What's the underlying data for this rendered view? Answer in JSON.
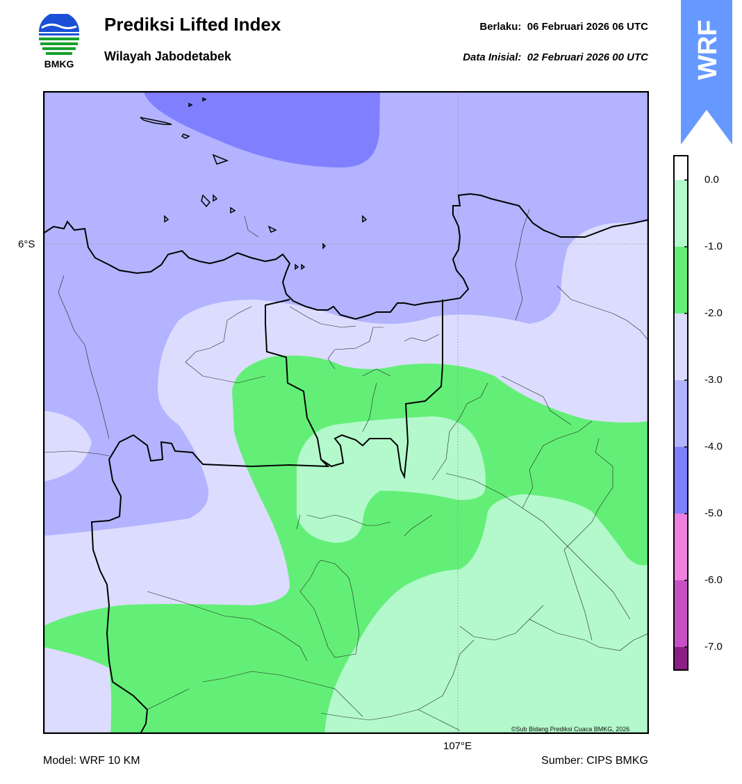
{
  "header": {
    "title": "Prediksi Lifted Index",
    "subtitle": "Wilayah Jabodetabek",
    "valid_label": "Berlaku:",
    "valid_value": "06 Februari 2026 06 UTC",
    "init_label": "Data Inisial:",
    "init_value": "02 Februari 2026 00 UTC"
  },
  "logo": {
    "text": "BMKG",
    "icon": "bmkg-logo-icon"
  },
  "banner": {
    "text": "WRF",
    "color": "#6699ff"
  },
  "map": {
    "lat_label": "6°S",
    "lon_label": "107°E",
    "credit": "©Sub Bidang Prediksi Cuaca BMKG, 2026"
  },
  "footer": {
    "model": "Model: WRF 10 KM",
    "source": "Sumber: CIPS BMKG"
  },
  "colorbar": {
    "levels": [
      {
        "label": "0.0",
        "value": 0.0
      },
      {
        "label": "-1.0",
        "value": -1.0
      },
      {
        "label": "-2.0",
        "value": -2.0
      },
      {
        "label": "-3.0",
        "value": -3.0
      },
      {
        "label": "-4.0",
        "value": -4.0
      },
      {
        "label": "-5.0",
        "value": -5.0
      },
      {
        "label": "-6.0",
        "value": -6.0
      },
      {
        "label": "-7.0",
        "value": -7.0
      }
    ],
    "colors": {
      "above_0": "#ffffff",
      "0_to_-1": "#b3f9cc",
      "-1_to_-2": "#63ef77",
      "-2_to_-3": "#dcdcff",
      "-3_to_-4": "#b3b3ff",
      "-4_to_-5": "#8080ff",
      "-5_to_-6": "#f080e0",
      "-6_to_-7": "#c94fc4",
      "below_-7": "#8b1f86"
    }
  }
}
